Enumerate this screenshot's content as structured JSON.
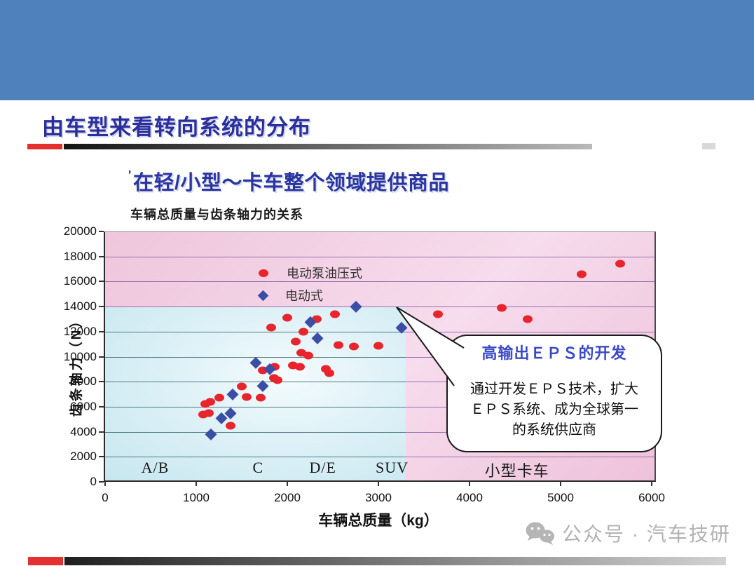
{
  "slide": {
    "page_title": "由车型来看转向系统的分布",
    "subtitle_mark": "'",
    "subtitle": "在轻/小型～卡车整个领域提供商品",
    "watermark_text": "公众号 · 汽车技研",
    "colors": {
      "header_band": "#4f81bd",
      "accent_red": "#e53030",
      "title_blue": "#2b2e9b"
    }
  },
  "chart_data": {
    "type": "scatter",
    "title": "车辆总质量与齿条轴力的关系",
    "xlabel": "车辆总质量（kg）",
    "ylabel": "齿条轴力（N）",
    "xlim": [
      0,
      6000
    ],
    "ylim": [
      0,
      20000
    ],
    "xtick_step": 1000,
    "ytick_step": 2000,
    "grid": true,
    "legend_position": "inside-top-center",
    "colors": {
      "pink_background": "#efc6dc",
      "blue_zone": "#cfeaf2",
      "grid_teal": "#4f7b80",
      "grid_purple": "#9a6fae"
    },
    "zones": {
      "eps_commodity_zone": {
        "x_range_kg": [
          0,
          3300
        ],
        "y_range_n": [
          0,
          14000
        ],
        "color_hint": "light-blue"
      },
      "background_hint": "pink"
    },
    "series": [
      {
        "name": "电动泵油压式",
        "marker": "circle",
        "color": "#e8242c",
        "points": [
          [
            1080,
            5400
          ],
          [
            1100,
            6200
          ],
          [
            1140,
            5500
          ],
          [
            1150,
            6400
          ],
          [
            1250,
            6700
          ],
          [
            1380,
            4500
          ],
          [
            1500,
            7600
          ],
          [
            1550,
            6800
          ],
          [
            1710,
            6700
          ],
          [
            1730,
            8900
          ],
          [
            1820,
            12300
          ],
          [
            1850,
            8300
          ],
          [
            1860,
            9200
          ],
          [
            1890,
            8100
          ],
          [
            2000,
            13100
          ],
          [
            2060,
            9300
          ],
          [
            2090,
            11200
          ],
          [
            2140,
            9200
          ],
          [
            2150,
            10300
          ],
          [
            2180,
            12000
          ],
          [
            2230,
            10100
          ],
          [
            2320,
            13000
          ],
          [
            2420,
            9000
          ],
          [
            2460,
            8700
          ],
          [
            2520,
            13400
          ],
          [
            2560,
            10900
          ],
          [
            2730,
            10800
          ],
          [
            3000,
            10850
          ],
          [
            3650,
            13400
          ],
          [
            4350,
            13900
          ],
          [
            4640,
            13000
          ],
          [
            5230,
            16600
          ],
          [
            5650,
            17400
          ]
        ]
      },
      {
        "name": "电动式",
        "marker": "diamond",
        "color": "#3b4ea5",
        "points": [
          [
            1160,
            3800
          ],
          [
            1280,
            5100
          ],
          [
            1380,
            5500
          ],
          [
            1400,
            7000
          ],
          [
            1650,
            9500
          ],
          [
            1730,
            7700
          ],
          [
            1810,
            9000
          ],
          [
            2250,
            12800
          ],
          [
            2330,
            11500
          ],
          [
            2750,
            14000
          ],
          [
            3250,
            12300
          ]
        ]
      }
    ],
    "vehicle_classes": [
      {
        "label": "A/B",
        "center_kg": 550
      },
      {
        "label": "C",
        "center_kg": 1680
      },
      {
        "label": "D/E",
        "center_kg": 2390
      },
      {
        "label": "SUV",
        "center_kg": 3150
      },
      {
        "label": "小型卡车",
        "center_kg": 4520
      }
    ],
    "callout": {
      "title": "高输出ＥＰＳ的开发",
      "body_lines": [
        "通过开发ＥＰＳ技术，扩大",
        "ＥＰＳ系统、成为全球第一",
        "的系统供应商"
      ],
      "points_to": {
        "kg": 3200,
        "n": 14000
      }
    }
  }
}
